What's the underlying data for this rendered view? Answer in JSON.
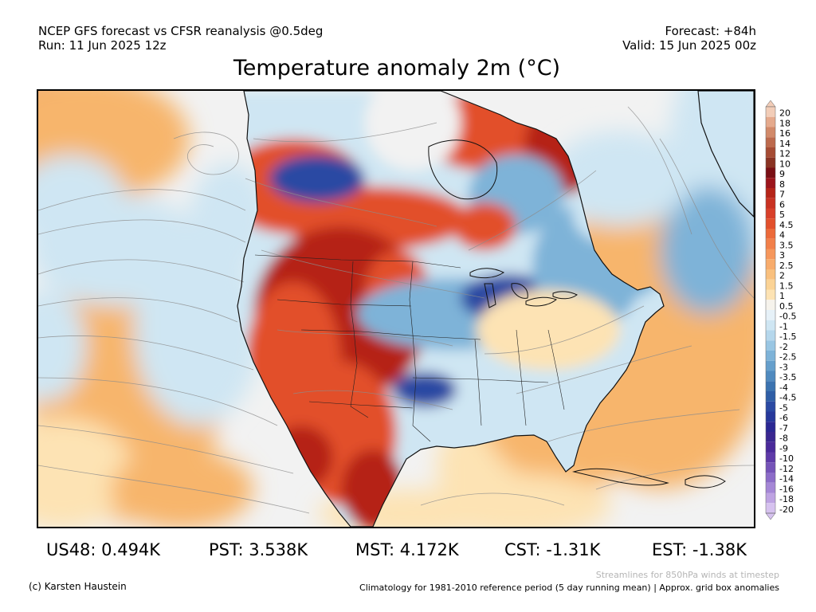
{
  "header": {
    "line1_left": "NCEP GFS forecast vs CFSR reanalysis @0.5deg",
    "line2_left": "Run: 11 Jun 2025 12z",
    "line1_right": "Forecast: +84h",
    "line2_right": "Valid: 15 Jun 2025 00z"
  },
  "title": "Temperature anomaly 2m (°C)",
  "colors": {
    "strong_warm": "#b52418",
    "warm": "#e2502c",
    "mild_warm": "#f7b56c",
    "slight_warm": "#fde3b4",
    "neutral": "#f2f2f2",
    "slight_cool": "#cfe6f3",
    "cool": "#7eb3d8",
    "strong_cool": "#2b4aa3",
    "very_cold": "#4a2a9a",
    "coastline": "#111111",
    "streamline": "#8c8c8c"
  },
  "legend": {
    "levels": [
      "20",
      "18",
      "16",
      "14",
      "12",
      "10",
      "9",
      "8",
      "7",
      "6",
      "5",
      "4.5",
      "4",
      "3.5",
      "3",
      "2.5",
      "2",
      "1.5",
      "1",
      "0.5",
      "-0.5",
      "-1",
      "-1.5",
      "-2",
      "-2.5",
      "-3",
      "-3.5",
      "-4",
      "-4.5",
      "-5",
      "-6",
      "-7",
      "-8",
      "-9",
      "-10",
      "-12",
      "-14",
      "-16",
      "-18",
      "-20"
    ],
    "colors": [
      "#f2cdb8",
      "#e5aa8d",
      "#d28a6a",
      "#bd6a4d",
      "#a64c34",
      "#8a3323",
      "#7a0f14",
      "#9c151b",
      "#b52418",
      "#c93222",
      "#d8402a",
      "#e2502c",
      "#ec6a3a",
      "#f2804a",
      "#f6975c",
      "#f8ac6c",
      "#f9c07e",
      "#fbd395",
      "#fde3b4",
      "#f6f3ec",
      "#e6f1f8",
      "#cfe6f3",
      "#b5d7ec",
      "#99c6e3",
      "#7eb3d8",
      "#669fcc",
      "#4f8abf",
      "#3c73b0",
      "#2f5ea6",
      "#2b4aa3",
      "#27399b",
      "#2b2893",
      "#3a2790",
      "#4a2a9a",
      "#5e3aa8",
      "#7553b8",
      "#8c6cc8",
      "#a587d6",
      "#bea3e2",
      "#d6c2ef"
    ]
  },
  "stats": [
    {
      "label": "US48: 0.494K"
    },
    {
      "label": "PST: 3.538K"
    },
    {
      "label": "MST: 4.172K"
    },
    {
      "label": "CST: -1.31K"
    },
    {
      "label": "EST: -1.38K"
    }
  ],
  "footer": {
    "copyright": "(c) Karsten Haustein",
    "streamlines_note": "Streamlines for 850hPa winds at timestep",
    "climatology_note": "Climatology for 1981-2010 reference period (5 day running mean) | Approx. grid box anomalies"
  }
}
